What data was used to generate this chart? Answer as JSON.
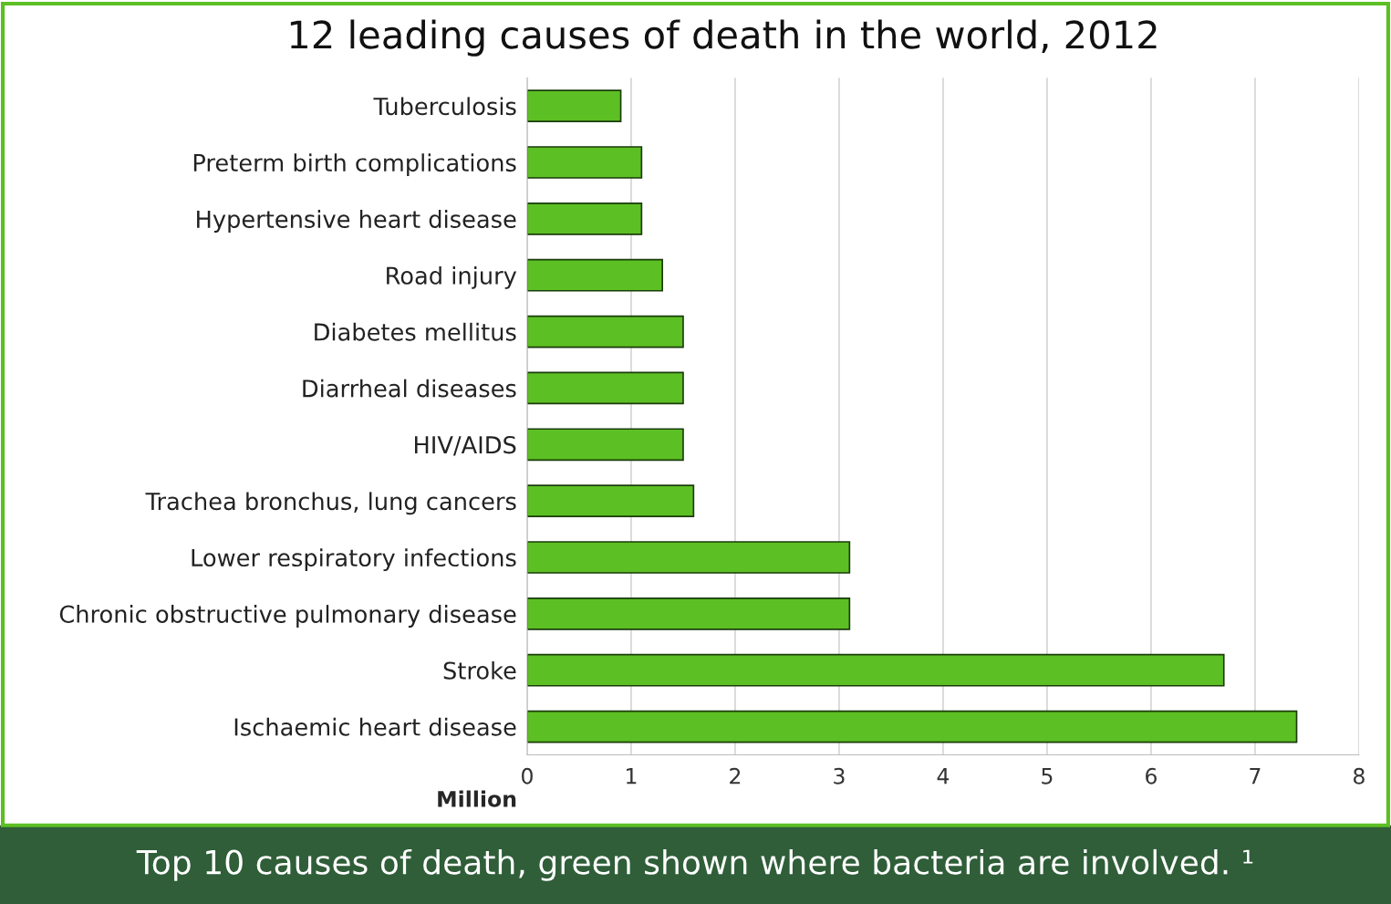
{
  "chart_data": {
    "type": "bar",
    "orientation": "horizontal",
    "title": "12 leading causes of death in the world, 2012",
    "categories": [
      "Tuberculosis",
      "Preterm birth complications",
      "Hypertensive heart disease",
      "Road injury",
      "Diabetes mellitus",
      "Diarrheal diseases",
      "HIV/AIDS",
      "Trachea bronchus, lung cancers",
      "Lower respiratory infections",
      "Chronic obstructive pulmonary disease",
      "Stroke",
      "Ischaemic heart disease"
    ],
    "values": [
      0.9,
      1.1,
      1.1,
      1.3,
      1.5,
      1.5,
      1.5,
      1.6,
      3.1,
      3.1,
      6.7,
      7.4
    ],
    "color": "#5cbf23",
    "xlabel": "Million",
    "xlim": [
      0,
      8
    ],
    "xticks": [
      0,
      1,
      2,
      3,
      4,
      5,
      6,
      7,
      8
    ],
    "grid": "x",
    "legend": false,
    "annotations": [
      "Top 10 causes of death, green shown where bacteria are involved. ¹"
    ]
  }
}
